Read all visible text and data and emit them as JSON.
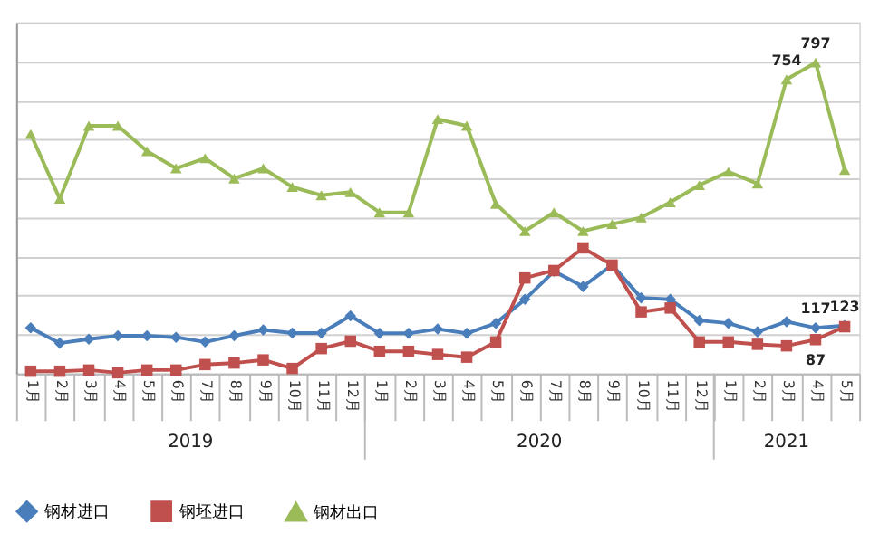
{
  "chart_data": {
    "type": "line",
    "categories": [
      "1月",
      "2月",
      "3月",
      "4月",
      "5月",
      "6月",
      "7月",
      "8月",
      "9月",
      "10月",
      "11月",
      "12月",
      "1月",
      "2月",
      "3月",
      "4月",
      "5月",
      "6月",
      "7月",
      "8月",
      "9月",
      "10月",
      "11月",
      "12月",
      "1月",
      "2月",
      "3月",
      "4月",
      "5月"
    ],
    "annotations": [
      "2019",
      "2020",
      "2021"
    ],
    "series": [
      {
        "name": "钢材进口",
        "color": "#4a7ebb",
        "marker": "diamond",
        "values": [
          117,
          78,
          88,
          97,
          97,
          93,
          81,
          97,
          112,
          104,
          104,
          148,
          103,
          103,
          114,
          103,
          129,
          190,
          262,
          223,
          278,
          194,
          190,
          136,
          129,
          107,
          133,
          117,
          123
        ],
        "value_labels": [
          null,
          null,
          null,
          null,
          null,
          null,
          null,
          null,
          null,
          null,
          null,
          null,
          null,
          null,
          null,
          null,
          null,
          null,
          null,
          null,
          null,
          null,
          null,
          null,
          null,
          null,
          null,
          "117",
          "123"
        ]
      },
      {
        "name": "钢坯进口",
        "color": "#c0504d",
        "marker": "square",
        "values": [
          6,
          6,
          9,
          2,
          9,
          9,
          23,
          27,
          35,
          13,
          64,
          83,
          57,
          57,
          49,
          42,
          81,
          245,
          264,
          322,
          278,
          158,
          168,
          81,
          81,
          75,
          71,
          87,
          120
        ],
        "value_labels": [
          null,
          null,
          null,
          null,
          null,
          null,
          null,
          null,
          null,
          null,
          null,
          null,
          null,
          null,
          null,
          null,
          null,
          null,
          null,
          null,
          null,
          null,
          null,
          null,
          null,
          null,
          null,
          "87",
          null
        ]
      },
      {
        "name": "钢材出口",
        "color": "#9bbb59",
        "marker": "triangle",
        "values": [
          614,
          448,
          635,
          635,
          570,
          526,
          552,
          500,
          526,
          478,
          457,
          465,
          413,
          413,
          652,
          635,
          435,
          365,
          413,
          365,
          383,
          400,
          439,
          483,
          517,
          487,
          754,
          797,
          522
        ],
        "value_labels": [
          null,
          null,
          null,
          null,
          null,
          null,
          null,
          null,
          null,
          null,
          null,
          null,
          null,
          null,
          null,
          null,
          null,
          null,
          null,
          null,
          null,
          null,
          null,
          null,
          null,
          null,
          "754",
          "797",
          null
        ]
      }
    ],
    "ylim": [
      0,
      900
    ],
    "yticks": [
      {
        "value": 0,
        "label": null
      },
      {
        "value": 100,
        "label": null
      },
      {
        "value": 200,
        "label": null
      },
      {
        "value": 300,
        "label": null
      },
      {
        "value": 400,
        "label": null
      },
      {
        "value": 500,
        "label": null
      },
      {
        "value": 600,
        "label": null
      },
      {
        "value": 700,
        "label": null
      },
      {
        "value": 800,
        "label": null
      },
      {
        "value": 900,
        "label": null
      }
    ],
    "tick_labels": "x",
    "grid": "y",
    "legend": "bottom",
    "line_style": "solid"
  }
}
